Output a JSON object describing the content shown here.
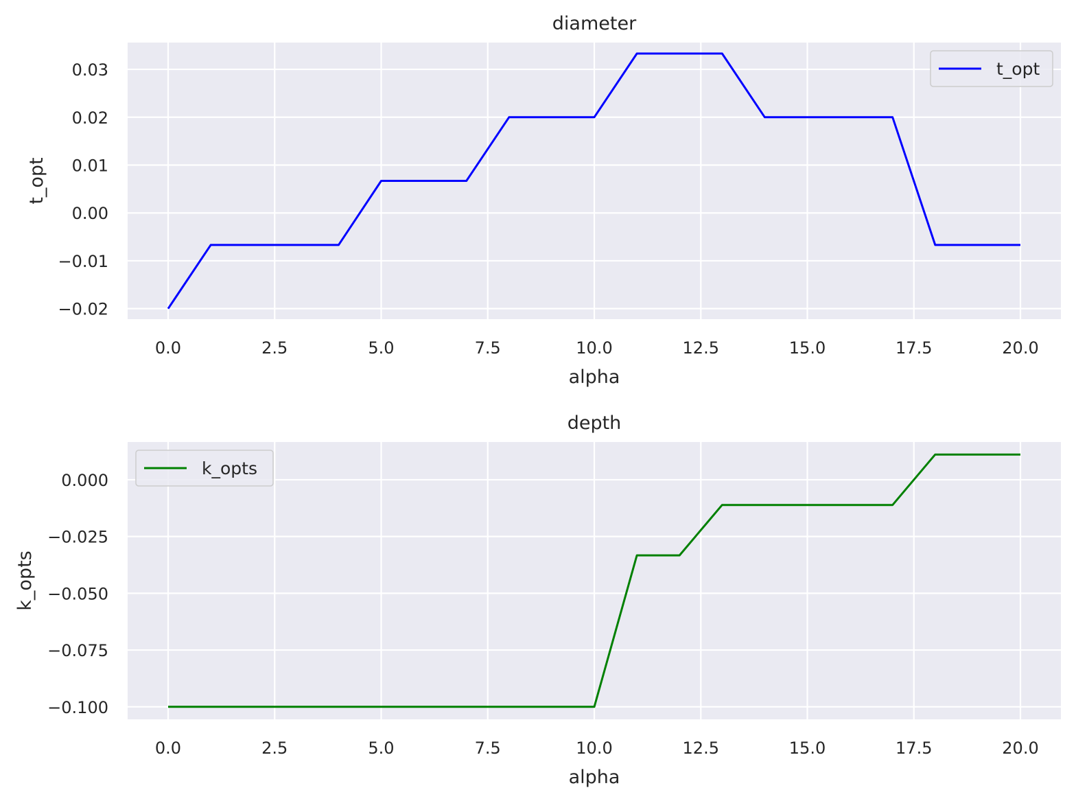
{
  "chart_data": [
    {
      "type": "line",
      "title": "diameter",
      "xlabel": "alpha",
      "ylabel": "t_opt",
      "xlim": [
        -0.95,
        20.95
      ],
      "ylim": [
        -0.0222,
        0.0356
      ],
      "grid": true,
      "legend_position": "top-right",
      "xticks": [
        0,
        2.5,
        5,
        7.5,
        10,
        12.5,
        15,
        17.5,
        20
      ],
      "xtick_labels": [
        "0.0",
        "2.5",
        "5.0",
        "7.5",
        "10.0",
        "12.5",
        "15.0",
        "17.5",
        "20.0"
      ],
      "yticks": [
        -0.02,
        -0.01,
        0,
        0.01,
        0.02,
        0.03
      ],
      "ytick_labels": [
        "−0.02",
        "−0.01",
        "0.00",
        "0.01",
        "0.02",
        "0.03"
      ],
      "series": [
        {
          "name": "t_opt",
          "color": "#0000ff",
          "x": [
            0,
            1,
            2,
            3,
            4,
            5,
            6,
            7,
            8,
            9,
            10,
            11,
            12,
            13,
            14,
            15,
            16,
            17,
            18,
            19,
            20
          ],
          "values": [
            -0.02,
            -0.0067,
            -0.0067,
            -0.0067,
            -0.0067,
            0.0067,
            0.0067,
            0.0067,
            0.02,
            0.02,
            0.02,
            0.0333,
            0.0333,
            0.0333,
            0.02,
            0.02,
            0.02,
            0.02,
            -0.0067,
            -0.0067,
            -0.0067
          ]
        }
      ]
    },
    {
      "type": "line",
      "title": "depth",
      "xlabel": "alpha",
      "ylabel": "k_opts",
      "xlim": [
        -0.95,
        20.95
      ],
      "ylim": [
        -0.1055,
        0.0166
      ],
      "grid": true,
      "legend_position": "top-left",
      "xticks": [
        0,
        2.5,
        5,
        7.5,
        10,
        12.5,
        15,
        17.5,
        20
      ],
      "xtick_labels": [
        "0.0",
        "2.5",
        "5.0",
        "7.5",
        "10.0",
        "12.5",
        "15.0",
        "17.5",
        "20.0"
      ],
      "yticks": [
        -0.1,
        -0.075,
        -0.05,
        -0.025,
        0
      ],
      "ytick_labels": [
        "−0.100",
        "−0.075",
        "−0.050",
        "−0.025",
        "0.000"
      ],
      "series": [
        {
          "name": "k_opts",
          "color": "#008000",
          "x": [
            0,
            1,
            2,
            3,
            4,
            5,
            6,
            7,
            8,
            9,
            10,
            11,
            12,
            13,
            14,
            15,
            16,
            17,
            18,
            19,
            20
          ],
          "values": [
            -0.1,
            -0.1,
            -0.1,
            -0.1,
            -0.1,
            -0.1,
            -0.1,
            -0.1,
            -0.1,
            -0.1,
            -0.1,
            -0.0333,
            -0.0333,
            -0.0111,
            -0.0111,
            -0.0111,
            -0.0111,
            -0.0111,
            0.0111,
            0.0111,
            0.0111
          ]
        }
      ]
    }
  ],
  "colors": {
    "axes_background": "#eaeaf2",
    "grid": "#ffffff",
    "text": "#262626"
  }
}
